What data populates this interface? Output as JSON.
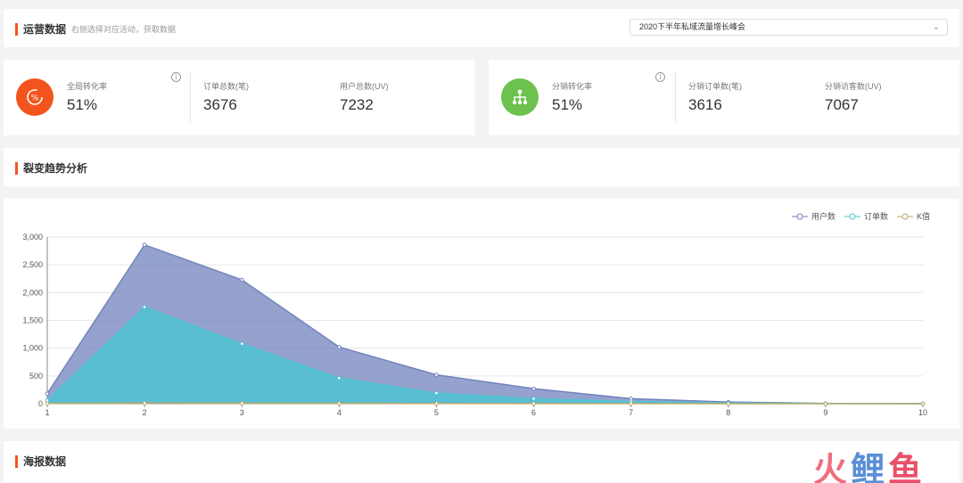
{
  "ops": {
    "title": "运营数据",
    "subtitle": "右侧选择对应活动，获取数据",
    "select_value": "2020下半年私域流量增长峰会"
  },
  "stats_left": {
    "items": [
      {
        "label": "全局转化率",
        "value": "51%"
      },
      {
        "label": "订单总数(笔)",
        "value": "3676"
      },
      {
        "label": "用户总数(UV)",
        "value": "7232"
      }
    ]
  },
  "stats_right": {
    "items": [
      {
        "label": "分销转化率",
        "value": "51%"
      },
      {
        "label": "分销订单数(笔)",
        "value": "3616"
      },
      {
        "label": "分销访客数(UV)",
        "value": "7067"
      }
    ]
  },
  "trend": {
    "title": "裂变趋势分析"
  },
  "poster": {
    "title": "海报数据"
  },
  "colors": {
    "accent": "#f3541e",
    "icon_orange": "#f3541e",
    "icon_green": "#6cc14f",
    "users": "#7283bd",
    "orders": "#4fc3d1",
    "k": "#b9a96a"
  },
  "watermark": {
    "text": "火鲤鱼"
  },
  "chart_data": {
    "type": "area",
    "x": [
      1,
      2,
      3,
      4,
      5,
      6,
      7,
      8,
      9,
      10
    ],
    "xticks": [
      "1",
      "2",
      "3",
      "4",
      "5",
      "6",
      "7",
      "8",
      "9",
      "10"
    ],
    "yticks": [
      "0",
      "500",
      "1,000",
      "1,500",
      "2,000",
      "2,500",
      "3,000"
    ],
    "ylim": [
      0,
      3000
    ],
    "legend_position": "top-right",
    "grid": true,
    "series": [
      {
        "name": "用户数",
        "values": [
          180,
          2860,
          2230,
          1020,
          520,
          270,
          90,
          30,
          5,
          2
        ]
      },
      {
        "name": "订单数",
        "values": [
          60,
          1740,
          1080,
          460,
          190,
          90,
          40,
          15,
          3,
          1
        ]
      },
      {
        "name": "K值",
        "values": [
          5,
          10,
          8,
          6,
          4,
          3,
          2,
          1,
          1,
          0
        ]
      }
    ]
  }
}
